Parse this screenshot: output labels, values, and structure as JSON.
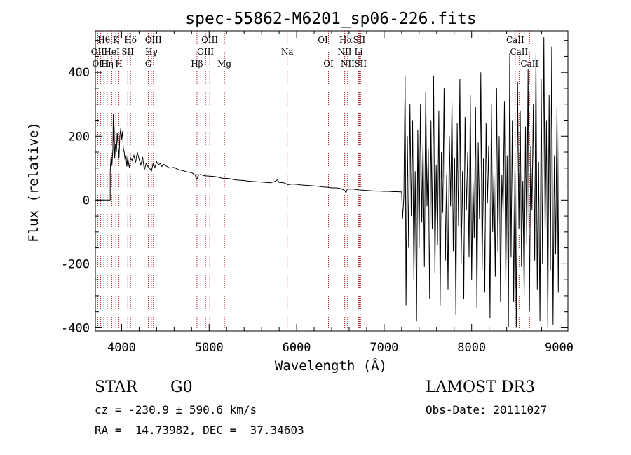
{
  "chart_data": {
    "type": "line",
    "title": "spec-55862-M6201_sp06-226.fits",
    "xlabel": "Wavelength (Å)",
    "ylabel": "Flux (relative)",
    "xlim": [
      3700,
      9100
    ],
    "ylim": [
      -410,
      530
    ],
    "xticks": [
      4000,
      5000,
      6000,
      7000,
      8000,
      9000
    ],
    "yticks": [
      -400,
      -200,
      0,
      200,
      400
    ],
    "grid": false,
    "line_color": "#000000",
    "marker_color": "#b22222",
    "series": [
      {
        "name": "flux",
        "points": [
          [
            3700,
            0
          ],
          [
            3870,
            0
          ],
          [
            3870,
            90
          ],
          [
            3880,
            140
          ],
          [
            3890,
            110
          ],
          [
            3900,
            160
          ],
          [
            3905,
            270
          ],
          [
            3910,
            185
          ],
          [
            3915,
            230
          ],
          [
            3920,
            130
          ],
          [
            3930,
            175
          ],
          [
            3940,
            150
          ],
          [
            3950,
            210
          ],
          [
            3960,
            170
          ],
          [
            3970,
            130
          ],
          [
            3980,
            200
          ],
          [
            3990,
            225
          ],
          [
            4000,
            190
          ],
          [
            4010,
            215
          ],
          [
            4020,
            160
          ],
          [
            4030,
            150
          ],
          [
            4040,
            125
          ],
          [
            4050,
            140
          ],
          [
            4060,
            105
          ],
          [
            4070,
            135
          ],
          [
            4080,
            115
          ],
          [
            4090,
            100
          ],
          [
            4100,
            130
          ],
          [
            4120,
            125
          ],
          [
            4140,
            140
          ],
          [
            4160,
            118
          ],
          [
            4180,
            150
          ],
          [
            4200,
            128
          ],
          [
            4220,
            110
          ],
          [
            4240,
            135
          ],
          [
            4260,
            95
          ],
          [
            4280,
            115
          ],
          [
            4300,
            105
          ],
          [
            4320,
            100
          ],
          [
            4340,
            90
          ],
          [
            4360,
            115
          ],
          [
            4380,
            102
          ],
          [
            4400,
            120
          ],
          [
            4420,
            110
          ],
          [
            4440,
            115
          ],
          [
            4460,
            105
          ],
          [
            4480,
            112
          ],
          [
            4500,
            108
          ],
          [
            4550,
            100
          ],
          [
            4600,
            102
          ],
          [
            4650,
            95
          ],
          [
            4700,
            92
          ],
          [
            4750,
            88
          ],
          [
            4800,
            86
          ],
          [
            4840,
            78
          ],
          [
            4860,
            65
          ],
          [
            4880,
            78
          ],
          [
            4900,
            80
          ],
          [
            4950,
            76
          ],
          [
            5000,
            75
          ],
          [
            5050,
            74
          ],
          [
            5100,
            72
          ],
          [
            5150,
            68
          ],
          [
            5200,
            68
          ],
          [
            5250,
            66
          ],
          [
            5300,
            63
          ],
          [
            5350,
            62
          ],
          [
            5400,
            61
          ],
          [
            5450,
            59
          ],
          [
            5500,
            58
          ],
          [
            5550,
            57
          ],
          [
            5600,
            56
          ],
          [
            5650,
            55
          ],
          [
            5700,
            54
          ],
          [
            5750,
            58
          ],
          [
            5780,
            63
          ],
          [
            5800,
            55
          ],
          [
            5850,
            54
          ],
          [
            5890,
            50
          ],
          [
            5900,
            48
          ],
          [
            5950,
            50
          ],
          [
            6000,
            49
          ],
          [
            6050,
            47
          ],
          [
            6100,
            46
          ],
          [
            6150,
            45
          ],
          [
            6200,
            44
          ],
          [
            6250,
            43
          ],
          [
            6300,
            41
          ],
          [
            6350,
            40
          ],
          [
            6400,
            38
          ],
          [
            6450,
            38
          ],
          [
            6500,
            36
          ],
          [
            6550,
            30
          ],
          [
            6563,
            22
          ],
          [
            6580,
            35
          ],
          [
            6600,
            34
          ],
          [
            6650,
            34
          ],
          [
            6700,
            32
          ],
          [
            6750,
            31
          ],
          [
            6800,
            30
          ],
          [
            6850,
            29
          ],
          [
            6900,
            28
          ],
          [
            6950,
            28
          ],
          [
            7000,
            27
          ],
          [
            7050,
            27
          ],
          [
            7100,
            26
          ],
          [
            7150,
            26
          ],
          [
            7200,
            25
          ],
          [
            7210,
            -60
          ],
          [
            7225,
            10
          ],
          [
            7240,
            390
          ],
          [
            7250,
            -330
          ],
          [
            7265,
            200
          ],
          [
            7280,
            -150
          ],
          [
            7295,
            300
          ],
          [
            7310,
            -50
          ],
          [
            7325,
            250
          ],
          [
            7340,
            -250
          ],
          [
            7355,
            90
          ],
          [
            7370,
            -380
          ],
          [
            7385,
            220
          ],
          [
            7400,
            -150
          ],
          [
            7415,
            300
          ],
          [
            7430,
            -70
          ],
          [
            7445,
            180
          ],
          [
            7460,
            -210
          ],
          [
            7475,
            340
          ],
          [
            7490,
            -20
          ],
          [
            7505,
            160
          ],
          [
            7520,
            -310
          ],
          [
            7535,
            250
          ],
          [
            7550,
            -90
          ],
          [
            7565,
            390
          ],
          [
            7580,
            -230
          ],
          [
            7595,
            110
          ],
          [
            7610,
            -140
          ],
          [
            7625,
            280
          ],
          [
            7640,
            -330
          ],
          [
            7655,
            150
          ],
          [
            7670,
            -40
          ],
          [
            7685,
            350
          ],
          [
            7700,
            -190
          ],
          [
            7715,
            80
          ],
          [
            7730,
            -280
          ],
          [
            7745,
            200
          ],
          [
            7760,
            -20
          ],
          [
            7775,
            310
          ],
          [
            7790,
            -160
          ],
          [
            7805,
            130
          ],
          [
            7820,
            -360
          ],
          [
            7835,
            240
          ],
          [
            7850,
            -80
          ],
          [
            7865,
            380
          ],
          [
            7880,
            -200
          ],
          [
            7895,
            90
          ],
          [
            7910,
            -310
          ],
          [
            7925,
            260
          ],
          [
            7940,
            -30
          ],
          [
            7955,
            150
          ],
          [
            7970,
            -180
          ],
          [
            7985,
            330
          ],
          [
            8000,
            -250
          ],
          [
            8015,
            60
          ],
          [
            8030,
            -120
          ],
          [
            8045,
            290
          ],
          [
            8060,
            -340
          ],
          [
            8075,
            180
          ],
          [
            8090,
            -60
          ],
          [
            8105,
            400
          ],
          [
            8120,
            -220
          ],
          [
            8135,
            130
          ],
          [
            8150,
            -290
          ],
          [
            8165,
            240
          ],
          [
            8180,
            -10
          ],
          [
            8195,
            170
          ],
          [
            8210,
            -370
          ],
          [
            8225,
            300
          ],
          [
            8240,
            -100
          ],
          [
            8255,
            90
          ],
          [
            8270,
            -240
          ],
          [
            8285,
            350
          ],
          [
            8300,
            -160
          ],
          [
            8315,
            200
          ],
          [
            8330,
            -320
          ],
          [
            8345,
            80
          ],
          [
            8360,
            -40
          ],
          [
            8375,
            310
          ],
          [
            8390,
            -260
          ],
          [
            8405,
            140
          ],
          [
            8420,
            -400
          ],
          [
            8435,
            460
          ],
          [
            8450,
            -180
          ],
          [
            8465,
            250
          ],
          [
            8480,
            -320
          ],
          [
            8495,
            120
          ],
          [
            8510,
            -400
          ],
          [
            8525,
            370
          ],
          [
            8540,
            -90
          ],
          [
            8555,
            280
          ],
          [
            8570,
            -210
          ],
          [
            8585,
            60
          ],
          [
            8600,
            -300
          ],
          [
            8615,
            230
          ],
          [
            8630,
            -140
          ],
          [
            8645,
            410
          ],
          [
            8660,
            -350
          ],
          [
            8675,
            170
          ],
          [
            8690,
            -30
          ],
          [
            8705,
            300
          ],
          [
            8720,
            -190
          ],
          [
            8735,
            460
          ],
          [
            8750,
            -280
          ],
          [
            8765,
            120
          ],
          [
            8780,
            -380
          ],
          [
            8795,
            380
          ],
          [
            8810,
            -200
          ],
          [
            8825,
            510
          ],
          [
            8840,
            -100
          ],
          [
            8855,
            250
          ],
          [
            8870,
            -400
          ],
          [
            8885,
            330
          ],
          [
            8900,
            -220
          ],
          [
            8915,
            480
          ],
          [
            8930,
            -390
          ],
          [
            8945,
            140
          ],
          [
            8960,
            -170
          ],
          [
            8975,
            290
          ],
          [
            8990,
            -290
          ],
          [
            9000,
            230
          ]
        ]
      }
    ],
    "line_markers": [
      {
        "label": "Hθ",
        "x": 3798,
        "row": 0
      },
      {
        "label": "OII",
        "x": 3727,
        "row": 1
      },
      {
        "label": "OIII",
        "x": 3760,
        "row": 2
      },
      {
        "label": "K",
        "x": 3934,
        "row": 0
      },
      {
        "label": "Hη",
        "x": 3835,
        "row": 2
      },
      {
        "label": "HeI",
        "x": 3889,
        "row": 1
      },
      {
        "label": "H",
        "x": 3969,
        "row": 2
      },
      {
        "label": "SII",
        "x": 4070,
        "row": 1
      },
      {
        "label": "Hδ",
        "x": 4102,
        "row": 0
      },
      {
        "label": "OIII",
        "x": 4363,
        "row": 0
      },
      {
        "label": "Hγ",
        "x": 4340,
        "row": 1
      },
      {
        "label": "G",
        "x": 4305,
        "row": 2
      },
      {
        "label": "Hβ",
        "x": 4861,
        "row": 2
      },
      {
        "label": "OIII",
        "x": 5007,
        "row": 0
      },
      {
        "label": "OIII",
        "x": 4959,
        "row": 1
      },
      {
        "label": "Mg",
        "x": 5175,
        "row": 2
      },
      {
        "label": "Na",
        "x": 5893,
        "row": 1
      },
      {
        "label": "OI",
        "x": 6300,
        "row": 0
      },
      {
        "label": "OI",
        "x": 6364,
        "row": 2
      },
      {
        "label": "Hα",
        "x": 6563,
        "row": 0
      },
      {
        "label": "NII",
        "x": 6548,
        "row": 1
      },
      {
        "label": "NII",
        "x": 6583,
        "row": 2
      },
      {
        "label": "SII",
        "x": 6716,
        "row": 0
      },
      {
        "label": "Li",
        "x": 6708,
        "row": 1
      },
      {
        "label": "SII",
        "x": 6731,
        "row": 2
      },
      {
        "label": "CaII",
        "x": 8498,
        "row": 0
      },
      {
        "label": "CaII",
        "x": 8542,
        "row": 1
      },
      {
        "label": "CaII",
        "x": 8662,
        "row": 2
      }
    ]
  },
  "info": {
    "object_class": "STAR",
    "subclass": "G0",
    "redshift": "cz = -230.9 ± 590.6 km/s",
    "coords": "RA =  14.73982, DEC =  37.34603",
    "survey": "LAMOST DR3",
    "obs_date": "Obs-Date: 20111027"
  }
}
